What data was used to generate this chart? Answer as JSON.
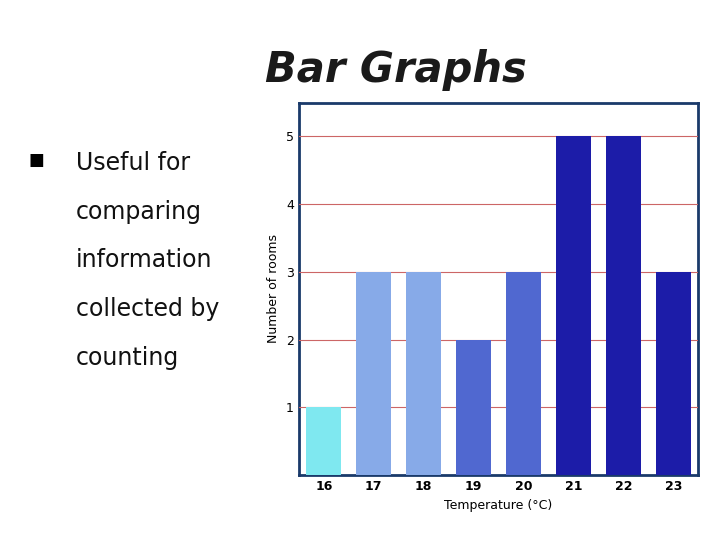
{
  "title": "Bar Graphs",
  "bullet_lines": [
    "Useful for",
    "comparing",
    "information",
    "collected by",
    "counting"
  ],
  "categories": [
    16,
    17,
    18,
    19,
    20,
    21,
    22,
    23
  ],
  "values": [
    1,
    3,
    3,
    2,
    3,
    5,
    5,
    3
  ],
  "bar_colors": [
    "#7fe8f0",
    "#87aae8",
    "#87aae8",
    "#5068d0",
    "#5068d0",
    "#1c1ca8",
    "#1c1ca8",
    "#1c1ca8"
  ],
  "xlabel": "Temperature (°C)",
  "ylabel": "Number of rooms",
  "ylim": [
    0,
    5.5
  ],
  "yticks": [
    1,
    2,
    3,
    4,
    5
  ],
  "background_color": "#ffffff",
  "chart_bg": "#ffffff",
  "border_color": "#1a3a6a",
  "grid_color": "#cc6666",
  "title_fontsize": 30,
  "axis_label_fontsize": 9,
  "tick_fontsize": 9,
  "bullet_fontsize": 17,
  "title_color": "#1a1a1a"
}
